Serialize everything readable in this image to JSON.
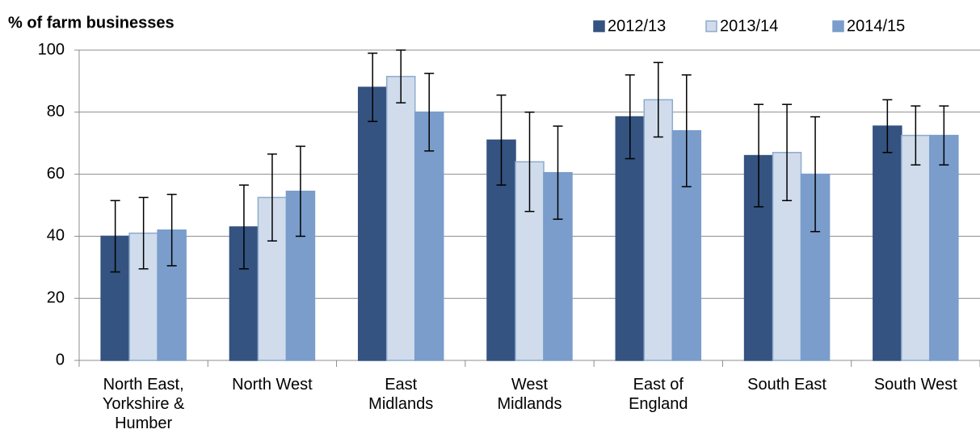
{
  "chart_data": {
    "type": "bar",
    "ylabel": "% of farm businesses",
    "categories": [
      "North East, Yorkshire & Humber",
      "North West",
      "East Midlands",
      "West Midlands",
      "East of England",
      "South East",
      "South West"
    ],
    "series": [
      {
        "name": "2012/13",
        "color": "#345380",
        "edgecolor": "#345380",
        "values": [
          40,
          43,
          88,
          71,
          78.5,
          66,
          75.5
        ],
        "errors": [
          11.5,
          13.5,
          11,
          14.5,
          13.5,
          16.5,
          8.5
        ]
      },
      {
        "name": "2013/14",
        "color": "#d0dcec",
        "edgecolor": "#8eaacc",
        "values": [
          41,
          52.5,
          91.5,
          64,
          84,
          67,
          72.5
        ],
        "errors": [
          11.5,
          14,
          8.5,
          16,
          12,
          15.5,
          9.5
        ]
      },
      {
        "name": "2014/15",
        "color": "#7a9dcb",
        "edgecolor": "#7a9dcb",
        "values": [
          42,
          54.5,
          80,
          60.5,
          74,
          60,
          72.5
        ],
        "errors": [
          11.5,
          14.5,
          12.5,
          15,
          18,
          18.5,
          9.5
        ]
      }
    ],
    "ylim": [
      0,
      100
    ],
    "yticks": [
      0,
      20,
      40,
      60,
      80,
      100
    ],
    "grid": true,
    "legend": "top-right"
  }
}
